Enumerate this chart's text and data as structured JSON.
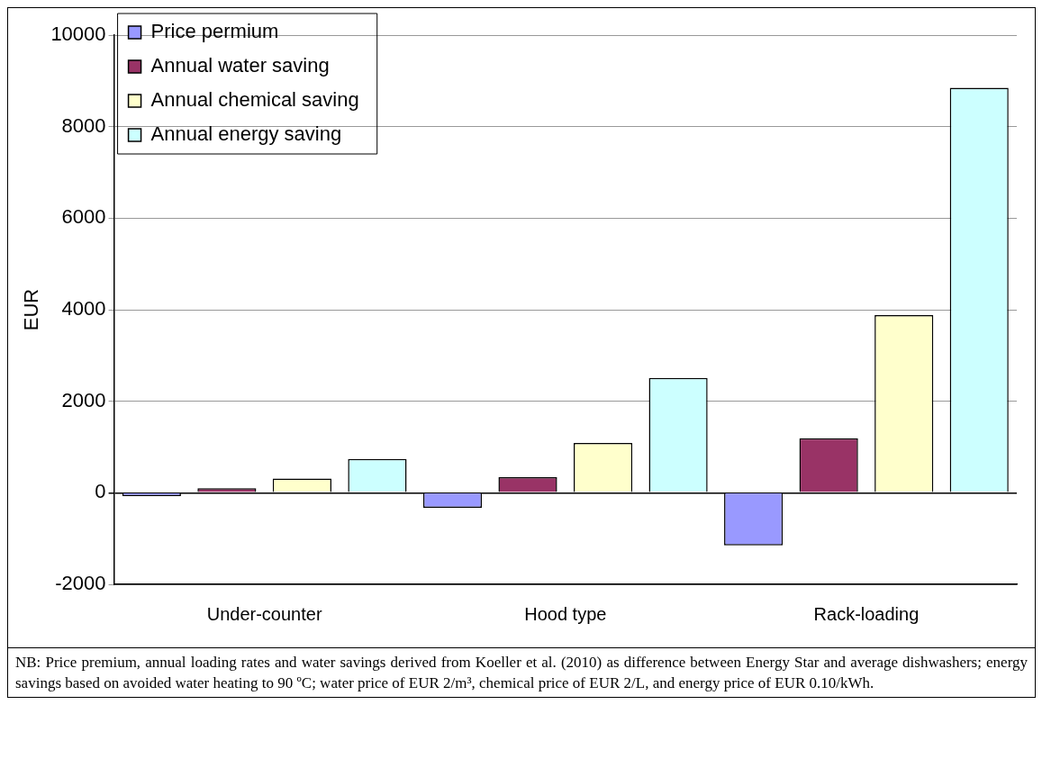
{
  "chart_data": {
    "type": "bar",
    "ylabel": "EUR",
    "categories": [
      "Under-counter",
      "Hood type",
      "Rack-loading"
    ],
    "series": [
      {
        "name": "Price permium",
        "color": "#9999ff",
        "values": [
          -70,
          -330,
          -1150
        ]
      },
      {
        "name": "Annual water saving",
        "color": "#993366",
        "values": [
          100,
          340,
          1190
        ]
      },
      {
        "name": "Annual chemical saving",
        "color": "#ffffcc",
        "values": [
          310,
          1090,
          3880
        ]
      },
      {
        "name": "Annual energy saving",
        "color": "#ccffff",
        "values": [
          740,
          2510,
          8850
        ]
      }
    ],
    "ylim": [
      -2000,
      10000
    ],
    "yticks": [
      -2000,
      0,
      2000,
      4000,
      6000,
      8000,
      10000
    ],
    "grid": "y",
    "legend": "top left",
    "annotations": [
      "NB: Price premium, annual loading rates and water savings derived from Koeller et al. (2010) as difference between Energy Star and average dishwashers; energy savings based on avoided water heating to 90 ºC; water price of EUR 2/m³, chemical price of EUR 2/L, and energy price of EUR 0.10/kWh."
    ]
  }
}
